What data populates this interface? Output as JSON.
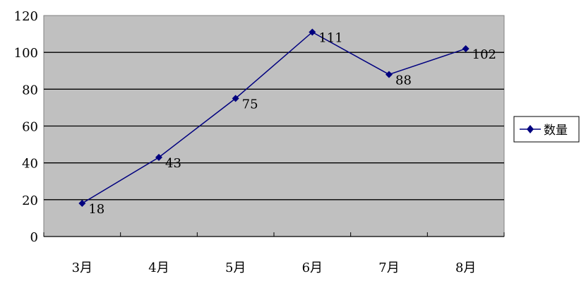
{
  "chart_data": {
    "type": "line",
    "categories": [
      "3月",
      "4月",
      "5月",
      "6月",
      "7月",
      "8月"
    ],
    "series": [
      {
        "name": "数量",
        "values": [
          18,
          43,
          75,
          111,
          88,
          102
        ],
        "color": "#00007f"
      }
    ],
    "title": "",
    "xlabel": "",
    "ylabel": "",
    "ylim": [
      0,
      120
    ],
    "yticks": [
      0,
      20,
      40,
      60,
      80,
      100,
      120
    ],
    "grid": true,
    "data_labels": true,
    "legend": "right",
    "plot_background": "#c0c0c0"
  }
}
